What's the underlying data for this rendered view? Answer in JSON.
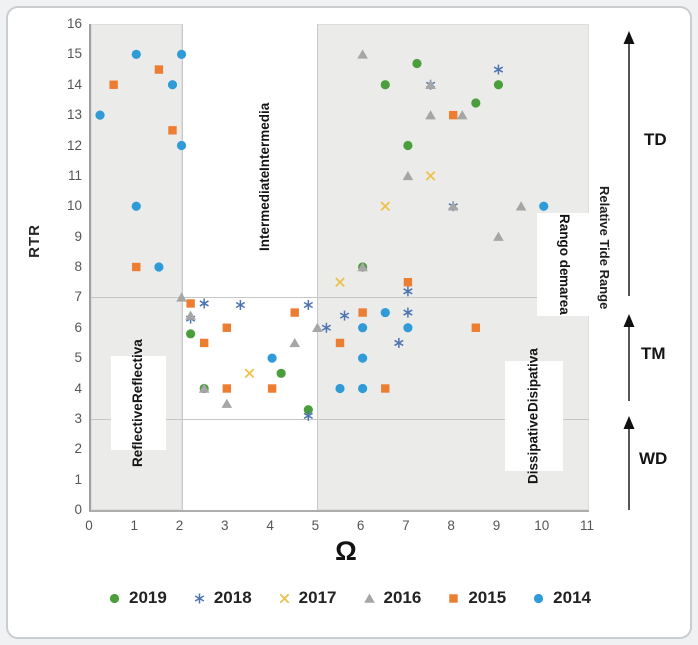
{
  "chart_data": {
    "type": "scatter",
    "title": "",
    "xlabel": "Ω",
    "ylabel": "RTR",
    "xlim": [
      0,
      11
    ],
    "ylim": [
      0,
      16
    ],
    "xticks": [
      0,
      1,
      2,
      3,
      4,
      5,
      6,
      7,
      8,
      9,
      10,
      11
    ],
    "yticks": [
      0,
      1,
      2,
      3,
      4,
      5,
      6,
      7,
      8,
      9,
      10,
      11,
      12,
      13,
      14,
      15,
      16
    ],
    "grid": {
      "x": [
        2,
        5
      ],
      "y": [
        3,
        7
      ]
    },
    "shaded_x_bands": [
      [
        0,
        2
      ],
      [
        5,
        11
      ]
    ],
    "band_color": "#ebebea",
    "legend_position": "bottom",
    "series": [
      {
        "name": "2019",
        "marker": "circle",
        "color": "#4A9E3B",
        "points": [
          [
            2.2,
            5.8
          ],
          [
            2.5,
            4
          ],
          [
            4.2,
            4.5
          ],
          [
            4.8,
            3.3
          ],
          [
            6,
            8
          ],
          [
            6.5,
            14
          ],
          [
            7,
            12
          ],
          [
            7.2,
            14.7
          ],
          [
            8.5,
            13.4
          ],
          [
            9,
            14
          ]
        ]
      },
      {
        "name": "2018",
        "marker": "asterisk",
        "color": "#4C74B0",
        "points": [
          [
            2.2,
            6.3
          ],
          [
            2.5,
            6.8
          ],
          [
            3.3,
            6.75
          ],
          [
            4.8,
            6.75
          ],
          [
            4.8,
            3.1
          ],
          [
            5.2,
            6
          ],
          [
            5.6,
            6.4
          ],
          [
            6.8,
            5.5
          ],
          [
            7,
            6.5
          ],
          [
            7,
            7.2
          ],
          [
            7.5,
            14
          ],
          [
            8,
            10
          ],
          [
            9,
            14.5
          ]
        ]
      },
      {
        "name": "2017",
        "marker": "x",
        "color": "#EDC24A",
        "points": [
          [
            3.5,
            4.5
          ],
          [
            5.5,
            7.5
          ],
          [
            6.5,
            10
          ],
          [
            7.5,
            11
          ]
        ]
      },
      {
        "name": "2016",
        "marker": "triangle",
        "color": "#A6A6A6",
        "points": [
          [
            2,
            7
          ],
          [
            2.2,
            6.4
          ],
          [
            2.5,
            4
          ],
          [
            3,
            3.5
          ],
          [
            4.5,
            5.5
          ],
          [
            5,
            6
          ],
          [
            6,
            8
          ],
          [
            6,
            15
          ],
          [
            7,
            11
          ],
          [
            7.5,
            13
          ],
          [
            7.5,
            14
          ],
          [
            8,
            10
          ],
          [
            8.2,
            13
          ],
          [
            9,
            9
          ],
          [
            9.5,
            10
          ]
        ]
      },
      {
        "name": "2015",
        "marker": "square",
        "color": "#ED7D31",
        "points": [
          [
            0.5,
            14
          ],
          [
            1,
            8
          ],
          [
            1.5,
            14.5
          ],
          [
            1.8,
            12.5
          ],
          [
            2.2,
            6.8
          ],
          [
            2.5,
            5.5
          ],
          [
            3,
            4
          ],
          [
            3,
            6
          ],
          [
            4,
            4
          ],
          [
            4.5,
            6.5
          ],
          [
            5.5,
            5.5
          ],
          [
            6,
            6.5
          ],
          [
            6.5,
            4
          ],
          [
            7,
            7.5
          ],
          [
            8,
            13
          ],
          [
            8.5,
            6
          ]
        ]
      },
      {
        "name": "2014",
        "marker": "dot",
        "color": "#2F9BD8",
        "points": [
          [
            0.2,
            13
          ],
          [
            1,
            10
          ],
          [
            1,
            15
          ],
          [
            1.5,
            8
          ],
          [
            1.8,
            14
          ],
          [
            2,
            12
          ],
          [
            2,
            15
          ],
          [
            4,
            5
          ],
          [
            5.5,
            4
          ],
          [
            6,
            4
          ],
          [
            6,
            5
          ],
          [
            6,
            6
          ],
          [
            6.5,
            6.5
          ],
          [
            7,
            6
          ],
          [
            10,
            10
          ]
        ]
      }
    ],
    "zone_labels": {
      "reflective": {
        "line1": "Reflective",
        "line2": "Reflectiva"
      },
      "intermediate": {
        "line1": "Intermediate",
        "line2": "Intermedia"
      },
      "dissipative": {
        "line1": "Dissipative",
        "line2": "Disipativa"
      }
    },
    "right_annotations": {
      "axis_title_en": "Relative Tide Range",
      "rango_line1": "Rango de",
      "rango_line2": "marea",
      "zones": {
        "td": "TD",
        "tm": "TM",
        "wd": "WD"
      }
    }
  }
}
